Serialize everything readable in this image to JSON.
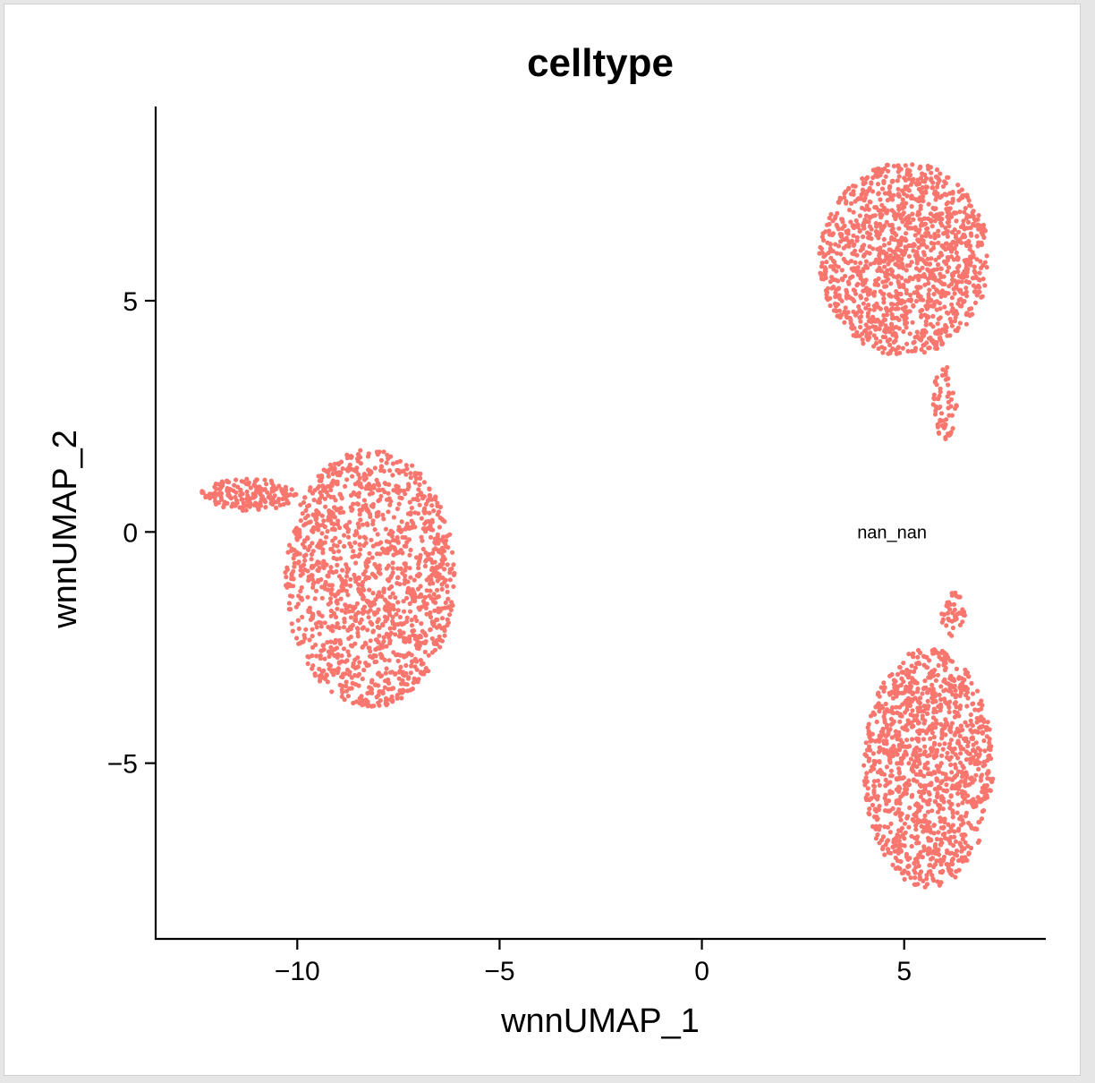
{
  "chart_data": {
    "type": "scatter",
    "title": "celltype",
    "xlabel": "wnnUMAP_1",
    "ylabel": "wnnUMAP_2",
    "xlim": [
      -13.5,
      8.5
    ],
    "ylim": [
      -8.8,
      9.2
    ],
    "xticks": [
      {
        "value": -10,
        "label": "−10"
      },
      {
        "value": -5,
        "label": "−5"
      },
      {
        "value": 0,
        "label": "0"
      },
      {
        "value": 5,
        "label": "5"
      }
    ],
    "yticks": [
      {
        "value": -5,
        "label": "−5"
      },
      {
        "value": 0,
        "label": "0"
      },
      {
        "value": 5,
        "label": "5"
      }
    ],
    "point_color": "#f8766d",
    "annotations": [
      {
        "text": "nan_nan",
        "x": 4.7,
        "y": 0.0
      }
    ],
    "clusters": [
      {
        "label": "left",
        "center": [
          -8.2,
          -1.0
        ],
        "rx": 2.1,
        "ry": 2.8,
        "n": 1400
      },
      {
        "label": "left-tail",
        "center": [
          -11.2,
          0.8
        ],
        "rx": 1.2,
        "ry": 0.35,
        "n": 170
      },
      {
        "label": "top-right",
        "center": [
          5.0,
          5.9
        ],
        "rx": 2.1,
        "ry": 2.1,
        "n": 1300
      },
      {
        "label": "top-right-tail",
        "center": [
          6.0,
          2.8
        ],
        "rx": 0.3,
        "ry": 0.8,
        "n": 60
      },
      {
        "label": "bottom-right",
        "center": [
          5.6,
          -5.1
        ],
        "rx": 1.6,
        "ry": 2.6,
        "n": 1200
      },
      {
        "label": "bottom-right-tail",
        "center": [
          6.2,
          -1.8
        ],
        "rx": 0.3,
        "ry": 0.5,
        "n": 40
      }
    ],
    "grid": false,
    "legend": "none"
  }
}
